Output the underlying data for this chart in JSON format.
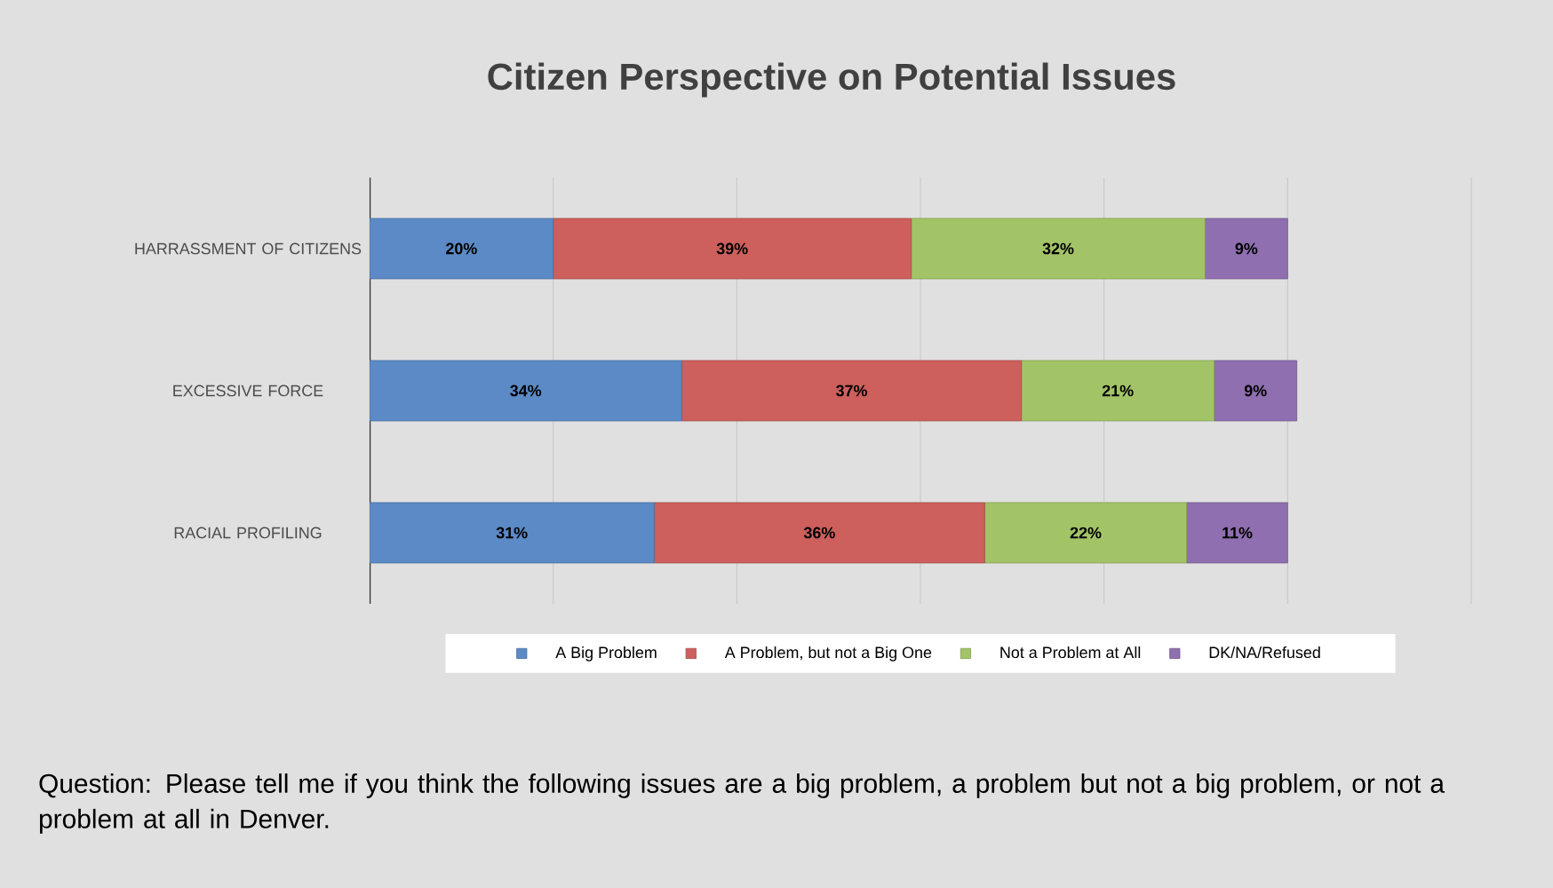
{
  "chart_data": {
    "type": "bar",
    "orientation": "horizontal",
    "stacked": true,
    "title": "Citizen Perspective on Potential Issues",
    "categories": [
      "HARRASSMENT OF CITIZENS",
      "EXCESSIVE FORCE",
      "RACIAL PROFILING"
    ],
    "series": [
      {
        "name": "A Big Problem",
        "color": "#5b8ac6",
        "values": [
          20,
          34,
          31
        ],
        "value_labels": [
          "20%",
          "34%",
          "31%"
        ]
      },
      {
        "name": "A Problem, but not a Big One",
        "color": "#cd5f5c",
        "values": [
          39,
          37,
          36
        ],
        "value_labels": [
          "39%",
          "37%",
          "36%"
        ]
      },
      {
        "name": "Not a Problem at All",
        "color": "#a3c466",
        "values": [
          32,
          21,
          22
        ],
        "value_labels": [
          "32%",
          "21%",
          "22%"
        ]
      },
      {
        "name": "DK/NA/Refused",
        "color": "#8f6fb0",
        "values": [
          9,
          9,
          11
        ],
        "value_labels": [
          "9%",
          "9%",
          "11%"
        ]
      }
    ],
    "xlim": [
      0,
      120
    ],
    "xticks": [
      {
        "value": 0,
        "label": null
      },
      {
        "value": 20,
        "label": null
      },
      {
        "value": 40,
        "label": null
      },
      {
        "value": 60,
        "label": null
      },
      {
        "value": 80,
        "label": null
      },
      {
        "value": 100,
        "label": null
      },
      {
        "value": 120,
        "label": null
      }
    ],
    "tick_labels": "y",
    "grid": "x",
    "legend": "bottom",
    "annotations": [
      "Question: Please tell me if you think the following issues are a big problem, a problem but not a big problem, or not a problem at all in Denver."
    ]
  }
}
